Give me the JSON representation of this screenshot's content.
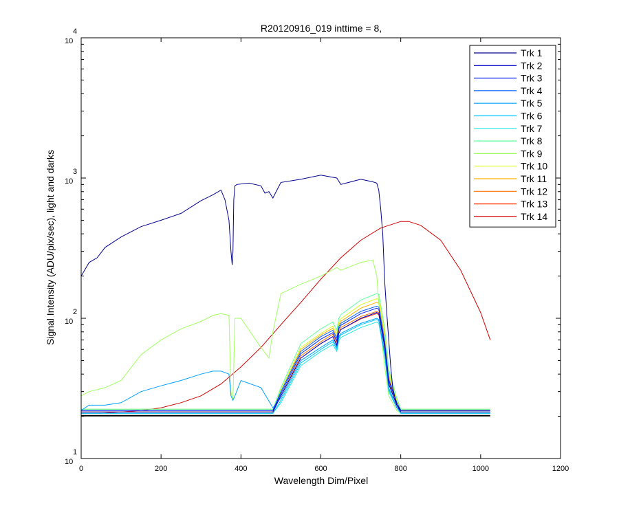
{
  "chart_data": {
    "type": "line",
    "title": "R20120916_019 inttime = 8,",
    "xlabel": "Wavelength Dim/Pixel",
    "ylabel": "Signal Intensity (ADU/pix/sec), light and darks",
    "xlim": [
      0,
      1200
    ],
    "ylim": [
      10,
      10000
    ],
    "yscale": "log",
    "grid": false,
    "legend_position": "top-right",
    "x_ticks": [
      "0",
      "200",
      "400",
      "600",
      "800",
      "1000",
      "1200"
    ],
    "y_ticks": [
      {
        "value": 10,
        "base": "10",
        "exp": "1"
      },
      {
        "value": 100,
        "base": "10",
        "exp": "2"
      },
      {
        "value": 1000,
        "base": "10",
        "exp": "3"
      },
      {
        "value": 10000,
        "base": "10",
        "exp": "4"
      }
    ],
    "series": [
      {
        "name": "Trk 1",
        "color": "#00008f",
        "x": [
          0,
          20,
          40,
          60,
          100,
          150,
          200,
          250,
          300,
          330,
          350,
          360,
          370,
          375,
          378,
          380,
          382,
          385,
          390,
          420,
          450,
          460,
          470,
          480,
          490,
          500,
          550,
          600,
          640,
          650,
          700,
          730,
          740,
          745,
          750,
          755,
          760,
          765,
          770,
          775,
          780,
          790,
          800,
          850,
          900,
          950,
          1000,
          1024
        ],
        "y": [
          200,
          250,
          270,
          320,
          380,
          450,
          500,
          560,
          690,
          760,
          820,
          700,
          500,
          300,
          240,
          300,
          700,
          880,
          900,
          920,
          880,
          780,
          800,
          720,
          820,
          930,
          980,
          1050,
          1000,
          900,
          980,
          940,
          920,
          820,
          600,
          400,
          180,
          110,
          70,
          45,
          32,
          24,
          22,
          22,
          22,
          22,
          22,
          22
        ]
      },
      {
        "name": "Trk 2",
        "color": "#0000c8",
        "x": [
          0,
          20,
          100,
          200,
          300,
          400,
          480,
          500,
          550,
          600,
          630,
          640,
          645,
          650,
          700,
          740,
          745,
          750,
          760,
          770,
          790,
          800,
          850,
          900,
          1000,
          1024
        ],
        "y": [
          21.5,
          21.5,
          21.5,
          21.5,
          21.5,
          21.5,
          21.5,
          28,
          52,
          66,
          74,
          64,
          78,
          83,
          100,
          110,
          108,
          90,
          62,
          34,
          24,
          21.5,
          21.5,
          21.5,
          21.5,
          21.5
        ]
      },
      {
        "name": "Trk 3",
        "color": "#0020ff",
        "x": [
          0,
          20,
          100,
          200,
          300,
          400,
          480,
          500,
          550,
          600,
          630,
          640,
          645,
          650,
          700,
          740,
          745,
          750,
          760,
          770,
          790,
          800,
          850,
          900,
          1000,
          1024
        ],
        "y": [
          22,
          22,
          22,
          22,
          22,
          22,
          22,
          29,
          56,
          71,
          79,
          69,
          84,
          89,
          108,
          118,
          116,
          96,
          66,
          36,
          25,
          22,
          22,
          22,
          22,
          22
        ]
      },
      {
        "name": "Trk 4",
        "color": "#0060ff",
        "x": [
          0,
          20,
          100,
          200,
          300,
          400,
          480,
          500,
          550,
          600,
          630,
          640,
          645,
          650,
          700,
          740,
          745,
          750,
          760,
          770,
          790,
          800,
          850,
          900,
          1000,
          1024
        ],
        "y": [
          22,
          22,
          22,
          22,
          22,
          22,
          22,
          30,
          58,
          74,
          82,
          72,
          87,
          92,
          112,
          122,
          120,
          100,
          68,
          37,
          25,
          22,
          22,
          22,
          22,
          22
        ]
      },
      {
        "name": "Trk 5",
        "color": "#00a0ff",
        "x": [
          0,
          20,
          60,
          100,
          150,
          200,
          250,
          300,
          330,
          350,
          370,
          375,
          380,
          385,
          400,
          450,
          480,
          500,
          550,
          600,
          630,
          640,
          645,
          650,
          700,
          740,
          745,
          750,
          760,
          770,
          790,
          800,
          850,
          1024
        ],
        "y": [
          22,
          24,
          24,
          25,
          30,
          33,
          36,
          40,
          42,
          42,
          40,
          28,
          26,
          28,
          36,
          32,
          23,
          27,
          50,
          62,
          70,
          62,
          74,
          78,
          92,
          100,
          98,
          82,
          56,
          32,
          23,
          21.5,
          21.5,
          21.5
        ]
      },
      {
        "name": "Trk 6",
        "color": "#00c8ff",
        "x": [
          0,
          20,
          100,
          200,
          300,
          400,
          480,
          500,
          550,
          600,
          630,
          640,
          645,
          650,
          700,
          740,
          745,
          750,
          760,
          770,
          790,
          800,
          850,
          900,
          1000,
          1024
        ],
        "y": [
          21,
          21,
          21,
          21,
          21,
          21,
          21,
          26,
          48,
          60,
          68,
          60,
          72,
          76,
          90,
          98,
          96,
          80,
          55,
          31,
          23,
          21,
          21,
          21,
          21,
          21
        ]
      },
      {
        "name": "Trk 7",
        "color": "#20e8e8",
        "x": [
          0,
          20,
          100,
          200,
          300,
          400,
          480,
          500,
          550,
          600,
          630,
          640,
          645,
          650,
          700,
          740,
          745,
          750,
          760,
          770,
          790,
          800,
          850,
          900,
          1000,
          1024
        ],
        "y": [
          21,
          21,
          21,
          21,
          21,
          21,
          21,
          25,
          46,
          58,
          65,
          58,
          69,
          73,
          86,
          94,
          92,
          77,
          53,
          30,
          23,
          21,
          21,
          21,
          21,
          21
        ]
      },
      {
        "name": "Trk 8",
        "color": "#60ff9f",
        "x": [
          0,
          20,
          100,
          200,
          300,
          400,
          480,
          500,
          550,
          600,
          630,
          640,
          645,
          650,
          700,
          740,
          745,
          750,
          760,
          770,
          790,
          800,
          850,
          900,
          1000,
          1024
        ],
        "y": [
          22.5,
          22.5,
          22.5,
          22.5,
          22.5,
          22.5,
          22.5,
          32,
          66,
          84,
          94,
          82,
          100,
          106,
          135,
          150,
          148,
          124,
          84,
          43,
          27,
          22.5,
          22.5,
          22.5,
          22.5,
          22.5
        ]
      },
      {
        "name": "Trk 9",
        "color": "#a0ff60",
        "x": [
          0,
          20,
          60,
          100,
          150,
          200,
          250,
          300,
          330,
          350,
          370,
          375,
          380,
          385,
          400,
          450,
          470,
          480,
          500,
          550,
          600,
          640,
          650,
          700,
          730,
          740,
          745,
          750,
          760,
          770,
          790,
          800,
          850,
          1024
        ],
        "y": [
          28,
          30,
          32,
          36,
          55,
          70,
          84,
          95,
          105,
          108,
          105,
          30,
          26,
          100,
          100,
          62,
          52,
          80,
          150,
          175,
          200,
          230,
          220,
          250,
          260,
          200,
          130,
          80,
          45,
          28,
          22,
          21,
          21,
          21
        ]
      },
      {
        "name": "Trk 10",
        "color": "#d8ff20",
        "x": [
          0,
          20,
          100,
          200,
          300,
          400,
          480,
          500,
          550,
          600,
          630,
          640,
          645,
          650,
          700,
          740,
          745,
          750,
          760,
          770,
          790,
          800,
          850,
          900,
          1000,
          1024
        ],
        "y": [
          22.5,
          22.5,
          22.5,
          22.5,
          22.5,
          22.5,
          22.5,
          31,
          62,
          78,
          88,
          77,
          93,
          99,
          125,
          138,
          136,
          114,
          78,
          41,
          26,
          22.5,
          22.5,
          22.5,
          22.5,
          22.5
        ]
      },
      {
        "name": "Trk 11",
        "color": "#ffb000",
        "x": [
          0,
          20,
          100,
          200,
          300,
          400,
          480,
          500,
          550,
          600,
          630,
          640,
          645,
          650,
          700,
          740,
          745,
          750,
          760,
          770,
          790,
          800,
          850,
          900,
          1000,
          1024
        ],
        "y": [
          22,
          22,
          22,
          22,
          22,
          22,
          22,
          30,
          60,
          76,
          85,
          74,
          90,
          95,
          118,
          130,
          128,
          107,
          73,
          39,
          25,
          22,
          22,
          22,
          22,
          22
        ]
      },
      {
        "name": "Trk 12",
        "color": "#ff7000",
        "x": [
          0,
          20,
          100,
          200,
          300,
          400,
          480,
          500,
          550,
          600,
          630,
          640,
          645,
          650,
          700,
          740,
          745,
          750,
          760,
          770,
          790,
          800,
          850,
          900,
          1000,
          1024
        ],
        "y": [
          21.5,
          21.5,
          21.5,
          21.5,
          21.5,
          21.5,
          21.5,
          28,
          54,
          68,
          77,
          67,
          81,
          86,
          103,
          112,
          110,
          92,
          63,
          35,
          24,
          21.5,
          21.5,
          21.5,
          21.5,
          21.5
        ]
      },
      {
        "name": "Trk 13",
        "color": "#ff3000",
        "x": [
          0,
          20,
          100,
          200,
          300,
          400,
          480,
          500,
          550,
          600,
          630,
          640,
          645,
          650,
          700,
          740,
          745,
          750,
          760,
          770,
          790,
          800,
          850,
          900,
          1000,
          1024
        ],
        "y": [
          21.5,
          21.5,
          21.5,
          21.5,
          21.5,
          21.5,
          21.5,
          28,
          52,
          66,
          74,
          65,
          78,
          83,
          99,
          108,
          106,
          89,
          61,
          34,
          24,
          21.5,
          21.5,
          21.5,
          21.5,
          21.5
        ]
      },
      {
        "name": "Trk 14",
        "color": "#d00000",
        "x": [
          0,
          50,
          100,
          150,
          200,
          250,
          300,
          350,
          400,
          450,
          500,
          550,
          600,
          650,
          700,
          750,
          800,
          820,
          850,
          900,
          950,
          1000,
          1024
        ],
        "y": [
          21,
          21,
          21.5,
          22,
          23,
          25,
          28,
          34,
          45,
          62,
          90,
          130,
          190,
          270,
          360,
          440,
          490,
          490,
          460,
          360,
          220,
          110,
          70
        ]
      },
      {
        "name": "",
        "color": "#000000",
        "x": [
          0,
          100,
          200,
          300,
          400,
          500,
          600,
          700,
          800,
          900,
          1000,
          1024
        ],
        "y": [
          20.2,
          20.2,
          20.2,
          20.2,
          20.2,
          20.2,
          20.2,
          20.2,
          20.2,
          20.2,
          20.2,
          20.2
        ]
      }
    ]
  }
}
